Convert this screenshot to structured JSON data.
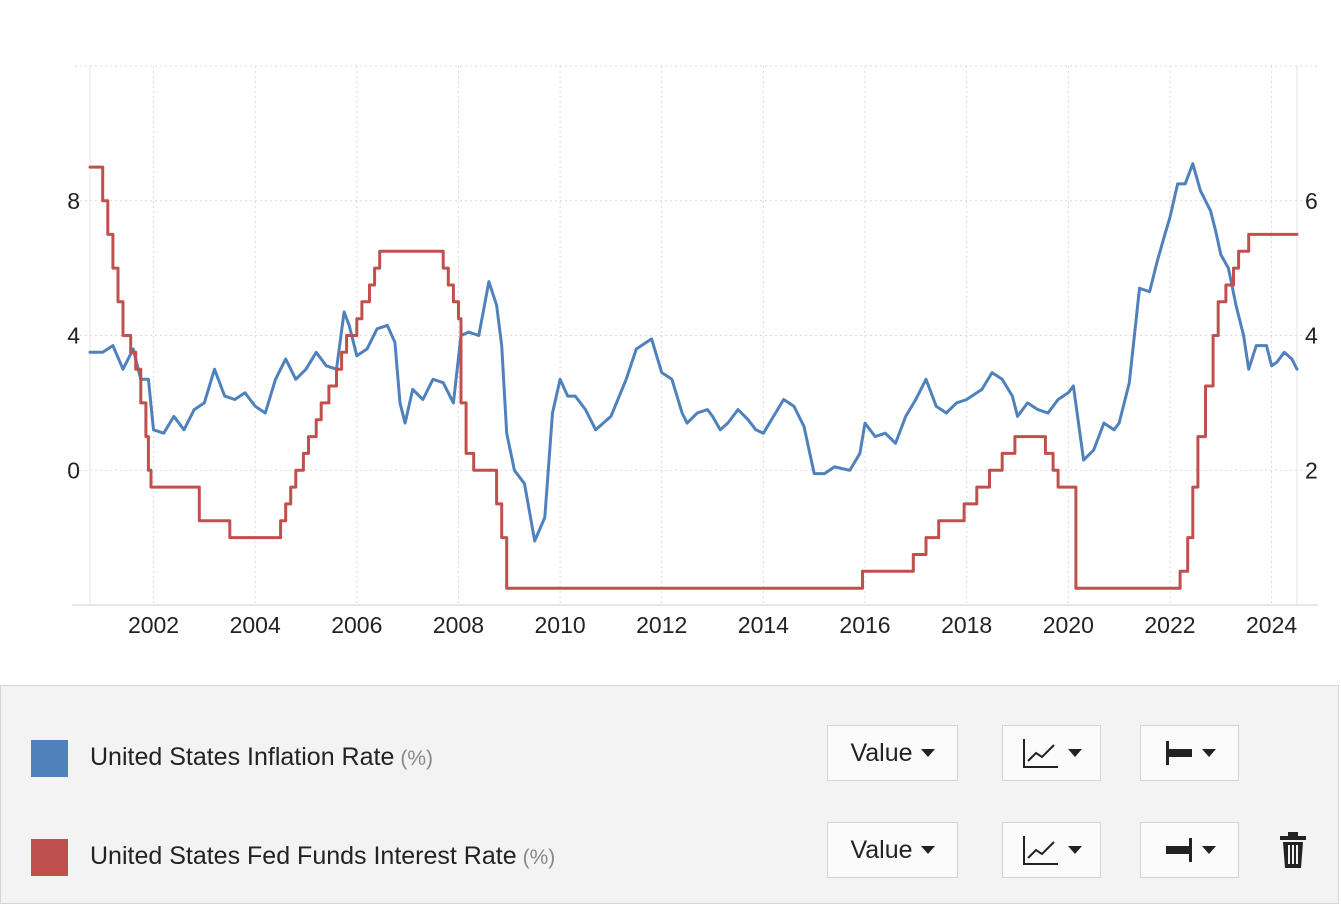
{
  "colors": {
    "inflation": "#4f81bd",
    "fedfunds": "#c0504d",
    "grid": "#d9d9d9",
    "panel": "#f3f3f3"
  },
  "legend": [
    {
      "label": "United States Inflation Rate",
      "unit": "(%)",
      "value_button": "Value",
      "chart_type_icon": "line-chart-icon",
      "axis_icon": "left-axis-icon"
    },
    {
      "label": "United States Fed Funds Interest Rate",
      "unit": "(%)",
      "value_button": "Value",
      "chart_type_icon": "line-chart-icon",
      "axis_icon": "right-axis-icon"
    }
  ],
  "delete_icon": "trash-icon",
  "chart_data": {
    "type": "line",
    "x_ticks": [
      "2002",
      "2004",
      "2006",
      "2008",
      "2010",
      "2012",
      "2014",
      "2016",
      "2018",
      "2020",
      "2022",
      "2024"
    ],
    "xlim": [
      2000.75,
      2024.5
    ],
    "y_left": {
      "ticks": [
        "8",
        "4",
        "0"
      ],
      "lim": [
        -4,
        12
      ]
    },
    "y_right": {
      "ticks": [
        "6",
        "4",
        "2"
      ],
      "lim": [
        0,
        8
      ]
    },
    "grid": true,
    "series": [
      {
        "name": "United States Inflation Rate",
        "axis": "left",
        "step": false,
        "points": [
          [
            2000.75,
            3.5
          ],
          [
            2001.0,
            3.5
          ],
          [
            2001.2,
            3.7
          ],
          [
            2001.4,
            3.0
          ],
          [
            2001.6,
            3.6
          ],
          [
            2001.75,
            2.7
          ],
          [
            2001.9,
            2.7
          ],
          [
            2002.0,
            1.2
          ],
          [
            2002.2,
            1.1
          ],
          [
            2002.4,
            1.6
          ],
          [
            2002.6,
            1.2
          ],
          [
            2002.8,
            1.8
          ],
          [
            2003.0,
            2.0
          ],
          [
            2003.2,
            3.0
          ],
          [
            2003.4,
            2.2
          ],
          [
            2003.6,
            2.1
          ],
          [
            2003.8,
            2.3
          ],
          [
            2004.0,
            1.9
          ],
          [
            2004.2,
            1.7
          ],
          [
            2004.4,
            2.7
          ],
          [
            2004.6,
            3.3
          ],
          [
            2004.8,
            2.7
          ],
          [
            2005.0,
            3.0
          ],
          [
            2005.2,
            3.5
          ],
          [
            2005.4,
            3.1
          ],
          [
            2005.6,
            3.0
          ],
          [
            2005.75,
            4.7
          ],
          [
            2005.85,
            4.3
          ],
          [
            2006.0,
            3.4
          ],
          [
            2006.2,
            3.6
          ],
          [
            2006.4,
            4.2
          ],
          [
            2006.6,
            4.3
          ],
          [
            2006.75,
            3.8
          ],
          [
            2006.85,
            2.0
          ],
          [
            2006.95,
            1.4
          ],
          [
            2007.1,
            2.4
          ],
          [
            2007.3,
            2.1
          ],
          [
            2007.5,
            2.7
          ],
          [
            2007.7,
            2.6
          ],
          [
            2007.9,
            2.0
          ],
          [
            2008.05,
            4.0
          ],
          [
            2008.2,
            4.1
          ],
          [
            2008.4,
            4.0
          ],
          [
            2008.6,
            5.6
          ],
          [
            2008.75,
            4.9
          ],
          [
            2008.85,
            3.7
          ],
          [
            2008.95,
            1.1
          ],
          [
            2009.1,
            0.0
          ],
          [
            2009.3,
            -0.4
          ],
          [
            2009.5,
            -2.1
          ],
          [
            2009.7,
            -1.4
          ],
          [
            2009.85,
            1.7
          ],
          [
            2010.0,
            2.7
          ],
          [
            2010.15,
            2.2
          ],
          [
            2010.3,
            2.2
          ],
          [
            2010.5,
            1.8
          ],
          [
            2010.7,
            1.2
          ],
          [
            2011.0,
            1.6
          ],
          [
            2011.3,
            2.7
          ],
          [
            2011.5,
            3.6
          ],
          [
            2011.7,
            3.8
          ],
          [
            2011.8,
            3.9
          ],
          [
            2012.0,
            2.9
          ],
          [
            2012.2,
            2.7
          ],
          [
            2012.4,
            1.7
          ],
          [
            2012.5,
            1.4
          ],
          [
            2012.7,
            1.7
          ],
          [
            2012.9,
            1.8
          ],
          [
            2013.0,
            1.6
          ],
          [
            2013.15,
            1.2
          ],
          [
            2013.3,
            1.4
          ],
          [
            2013.5,
            1.8
          ],
          [
            2013.7,
            1.5
          ],
          [
            2013.85,
            1.2
          ],
          [
            2014.0,
            1.1
          ],
          [
            2014.2,
            1.6
          ],
          [
            2014.4,
            2.1
          ],
          [
            2014.6,
            1.9
          ],
          [
            2014.8,
            1.3
          ],
          [
            2015.0,
            -0.1
          ],
          [
            2015.2,
            -0.1
          ],
          [
            2015.4,
            0.1
          ],
          [
            2015.7,
            0.0
          ],
          [
            2015.9,
            0.5
          ],
          [
            2016.0,
            1.4
          ],
          [
            2016.2,
            1.0
          ],
          [
            2016.4,
            1.1
          ],
          [
            2016.6,
            0.8
          ],
          [
            2016.8,
            1.6
          ],
          [
            2017.0,
            2.1
          ],
          [
            2017.2,
            2.7
          ],
          [
            2017.4,
            1.9
          ],
          [
            2017.6,
            1.7
          ],
          [
            2017.8,
            2.0
          ],
          [
            2018.0,
            2.1
          ],
          [
            2018.3,
            2.4
          ],
          [
            2018.5,
            2.9
          ],
          [
            2018.7,
            2.7
          ],
          [
            2018.9,
            2.2
          ],
          [
            2019.0,
            1.6
          ],
          [
            2019.2,
            2.0
          ],
          [
            2019.4,
            1.8
          ],
          [
            2019.6,
            1.7
          ],
          [
            2019.8,
            2.1
          ],
          [
            2020.0,
            2.3
          ],
          [
            2020.1,
            2.5
          ],
          [
            2020.3,
            0.3
          ],
          [
            2020.5,
            0.6
          ],
          [
            2020.7,
            1.4
          ],
          [
            2020.9,
            1.2
          ],
          [
            2021.0,
            1.4
          ],
          [
            2021.2,
            2.6
          ],
          [
            2021.4,
            5.4
          ],
          [
            2021.6,
            5.3
          ],
          [
            2021.75,
            6.2
          ],
          [
            2021.9,
            7.0
          ],
          [
            2022.0,
            7.5
          ],
          [
            2022.15,
            8.5
          ],
          [
            2022.3,
            8.5
          ],
          [
            2022.45,
            9.1
          ],
          [
            2022.6,
            8.3
          ],
          [
            2022.8,
            7.7
          ],
          [
            2022.9,
            7.1
          ],
          [
            2023.0,
            6.4
          ],
          [
            2023.15,
            6.0
          ],
          [
            2023.3,
            4.9
          ],
          [
            2023.45,
            4.0
          ],
          [
            2023.55,
            3.0
          ],
          [
            2023.7,
            3.7
          ],
          [
            2023.9,
            3.7
          ],
          [
            2024.0,
            3.1
          ],
          [
            2024.1,
            3.2
          ],
          [
            2024.25,
            3.5
          ],
          [
            2024.4,
            3.3
          ],
          [
            2024.5,
            3.0
          ]
        ]
      },
      {
        "name": "United States Fed Funds Interest Rate",
        "axis": "right",
        "step": true,
        "points": [
          [
            2000.75,
            6.5
          ],
          [
            2001.0,
            6.0
          ],
          [
            2001.1,
            5.5
          ],
          [
            2001.2,
            5.0
          ],
          [
            2001.3,
            4.5
          ],
          [
            2001.4,
            4.0
          ],
          [
            2001.55,
            3.75
          ],
          [
            2001.65,
            3.5
          ],
          [
            2001.75,
            3.0
          ],
          [
            2001.85,
            2.5
          ],
          [
            2001.9,
            2.0
          ],
          [
            2001.95,
            1.75
          ],
          [
            2002.9,
            1.25
          ],
          [
            2003.5,
            1.0
          ],
          [
            2004.5,
            1.25
          ],
          [
            2004.6,
            1.5
          ],
          [
            2004.7,
            1.75
          ],
          [
            2004.8,
            2.0
          ],
          [
            2004.95,
            2.25
          ],
          [
            2005.05,
            2.5
          ],
          [
            2005.2,
            2.75
          ],
          [
            2005.3,
            3.0
          ],
          [
            2005.45,
            3.25
          ],
          [
            2005.6,
            3.5
          ],
          [
            2005.7,
            3.75
          ],
          [
            2005.8,
            4.0
          ],
          [
            2006.0,
            4.25
          ],
          [
            2006.1,
            4.5
          ],
          [
            2006.25,
            4.75
          ],
          [
            2006.35,
            5.0
          ],
          [
            2006.45,
            5.25
          ],
          [
            2007.7,
            5.0
          ],
          [
            2007.8,
            4.75
          ],
          [
            2007.9,
            4.5
          ],
          [
            2008.0,
            4.25
          ],
          [
            2008.05,
            3.0
          ],
          [
            2008.15,
            2.25
          ],
          [
            2008.3,
            2.0
          ],
          [
            2008.75,
            1.5
          ],
          [
            2008.85,
            1.0
          ],
          [
            2008.95,
            0.25
          ],
          [
            2015.95,
            0.5
          ],
          [
            2016.95,
            0.75
          ],
          [
            2017.2,
            1.0
          ],
          [
            2017.45,
            1.25
          ],
          [
            2017.95,
            1.5
          ],
          [
            2018.2,
            1.75
          ],
          [
            2018.45,
            2.0
          ],
          [
            2018.7,
            2.25
          ],
          [
            2018.95,
            2.5
          ],
          [
            2019.55,
            2.25
          ],
          [
            2019.7,
            2.0
          ],
          [
            2019.8,
            1.75
          ],
          [
            2020.15,
            0.25
          ],
          [
            2022.2,
            0.5
          ],
          [
            2022.35,
            1.0
          ],
          [
            2022.45,
            1.75
          ],
          [
            2022.55,
            2.5
          ],
          [
            2022.7,
            3.25
          ],
          [
            2022.85,
            4.0
          ],
          [
            2022.95,
            4.5
          ],
          [
            2023.1,
            4.75
          ],
          [
            2023.25,
            5.0
          ],
          [
            2023.35,
            5.25
          ],
          [
            2023.55,
            5.5
          ],
          [
            2024.5,
            5.5
          ]
        ]
      }
    ]
  }
}
